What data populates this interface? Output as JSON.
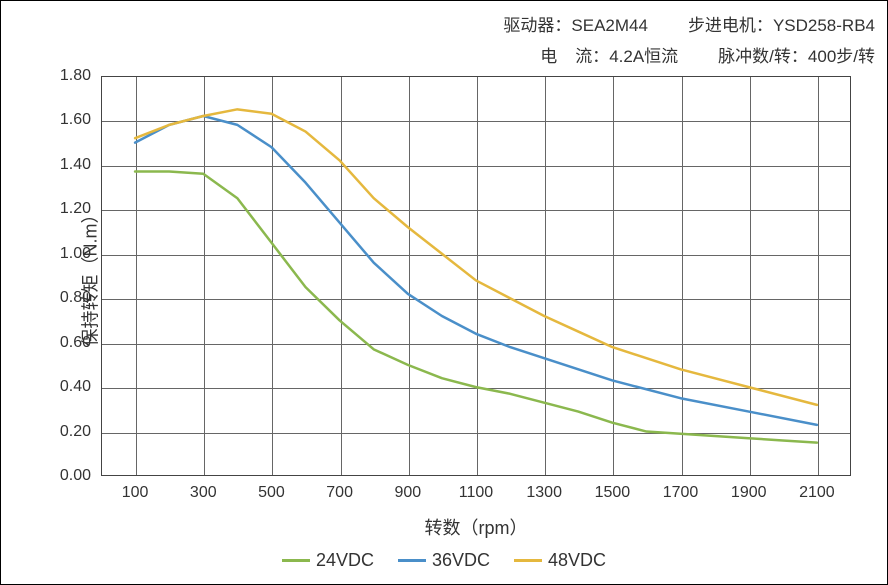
{
  "header": {
    "row1": {
      "left_label": "驱动器：",
      "left_value": "SEA2M44",
      "right_label": "步进电机：",
      "right_value": "YSD258-RB4"
    },
    "row2": {
      "left_label": "电",
      "left_label2": "流：",
      "left_value": "4.2A恒流",
      "right_label": "脉冲数/转：",
      "right_value": "400步/转"
    }
  },
  "chart": {
    "type": "line",
    "y_label": "保持转矩（N.m）",
    "x_label": "转数（rpm）",
    "x_min": 0,
    "x_max": 2200,
    "x_ticks": [
      100,
      300,
      500,
      700,
      900,
      1100,
      1300,
      1500,
      1700,
      1900,
      2100
    ],
    "x_grid": [
      100,
      300,
      500,
      700,
      900,
      1100,
      1300,
      1500,
      1700,
      1900,
      2100
    ],
    "y_min": 0.0,
    "y_max": 1.8,
    "y_ticks": [
      0.0,
      0.2,
      0.4,
      0.6,
      0.8,
      1.0,
      1.2,
      1.4,
      1.6,
      1.8
    ],
    "y_tick_labels": [
      "0.00",
      "0.20",
      "0.40",
      "0.60",
      "0.80",
      "1.00",
      "1.20",
      "1.40",
      "1.60",
      "1.80"
    ],
    "background_color": "#ffffff",
    "grid_color": "#666666",
    "axis_color": "#444444",
    "line_width": 2.5,
    "label_fontsize": 18,
    "tick_fontsize": 16,
    "series": [
      {
        "name": "24VDC",
        "label": "24VDC",
        "color": "#8bb84e",
        "x": [
          100,
          200,
          300,
          400,
          500,
          600,
          700,
          800,
          900,
          1000,
          1100,
          1200,
          1300,
          1400,
          1500,
          1600,
          1700,
          1800,
          1900,
          2000,
          2100
        ],
        "y": [
          1.37,
          1.37,
          1.36,
          1.25,
          1.05,
          0.85,
          0.7,
          0.57,
          0.5,
          0.44,
          0.4,
          0.37,
          0.33,
          0.29,
          0.24,
          0.2,
          0.19,
          0.18,
          0.17,
          0.16,
          0.15
        ]
      },
      {
        "name": "36VDC",
        "label": "36VDC",
        "color": "#4a8fc9",
        "x": [
          100,
          200,
          300,
          400,
          500,
          600,
          700,
          800,
          900,
          1000,
          1100,
          1200,
          1300,
          1400,
          1500,
          1700,
          1900,
          2100
        ],
        "y": [
          1.5,
          1.58,
          1.62,
          1.58,
          1.48,
          1.32,
          1.14,
          0.96,
          0.82,
          0.72,
          0.64,
          0.58,
          0.53,
          0.48,
          0.43,
          0.35,
          0.29,
          0.23
        ]
      },
      {
        "name": "48VDC",
        "label": "48VDC",
        "color": "#e5b83e",
        "x": [
          100,
          200,
          300,
          400,
          500,
          600,
          700,
          800,
          900,
          1000,
          1100,
          1200,
          1300,
          1400,
          1500,
          1700,
          1900,
          2100
        ],
        "y": [
          1.52,
          1.58,
          1.62,
          1.65,
          1.63,
          1.55,
          1.42,
          1.25,
          1.12,
          1.0,
          0.88,
          0.8,
          0.72,
          0.65,
          0.58,
          0.48,
          0.4,
          0.32
        ]
      }
    ],
    "legend_items": [
      "24VDC",
      "36VDC",
      "48VDC"
    ]
  }
}
